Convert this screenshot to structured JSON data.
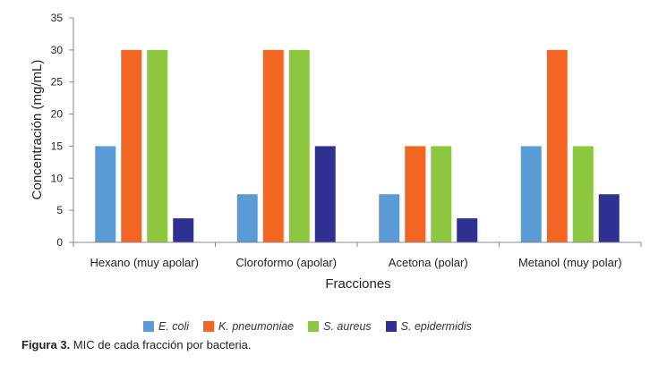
{
  "chart_data": {
    "type": "bar",
    "categories": [
      "Hexano (muy apolar)",
      "Cloroformo (apolar)",
      "Acetona (polar)",
      "Metanol (muy polar)"
    ],
    "series": [
      {
        "name": "E. coli",
        "color": "#5b9bd5",
        "values": [
          15,
          7.5,
          7.5,
          15
        ]
      },
      {
        "name": "K. pneumoniae",
        "color": "#f26522",
        "values": [
          30,
          30,
          15,
          30
        ]
      },
      {
        "name": "S. aureus",
        "color": "#8dc63f",
        "values": [
          30,
          30,
          15,
          15
        ]
      },
      {
        "name": "S. epidermidis",
        "color": "#2e3192",
        "values": [
          3.75,
          15,
          3.75,
          7.5
        ]
      }
    ],
    "xlabel": "Fracciones",
    "ylabel": "Concentración (mg/mL)",
    "ylim": [
      0,
      35
    ],
    "yticks": [
      0,
      5,
      10,
      15,
      20,
      25,
      30,
      35
    ],
    "grid": false,
    "legend_position": "bottom"
  },
  "caption": {
    "label": "Figura 3.",
    "text": " MIC de cada fracción por bacteria."
  }
}
